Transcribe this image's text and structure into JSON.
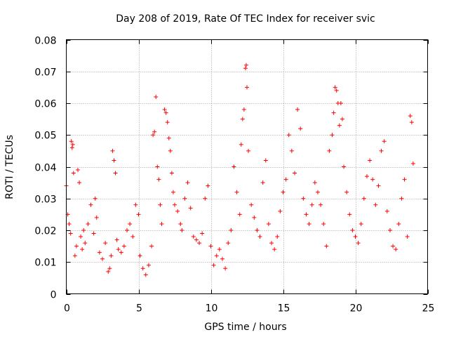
{
  "chart_data": {
    "type": "scatter",
    "title": "Day 208 of 2019, Rate Of TEC Index for receiver svic",
    "xlabel": "GPS time / hours",
    "ylabel": "ROTI / TECUs",
    "xlim": [
      0,
      25
    ],
    "ylim": [
      0,
      0.08
    ],
    "xticks": [
      0,
      5,
      10,
      15,
      20,
      25
    ],
    "xtick_labels": [
      "0",
      "5",
      "10",
      "15",
      "20",
      "25"
    ],
    "yticks": [
      0,
      0.01,
      0.02,
      0.03,
      0.04,
      0.05,
      0.06,
      0.07,
      0.08
    ],
    "ytick_labels": [
      "0",
      "0.01",
      "0.02",
      "0.03",
      "0.04",
      "0.05",
      "0.06",
      "0.07",
      "0.08"
    ],
    "grid": true,
    "marker": "plus",
    "series": [
      {
        "name": "ROTI",
        "color": "#ff0000",
        "points": [
          [
            0.0,
            0.034
          ],
          [
            0.1,
            0.025
          ],
          [
            0.2,
            0.022
          ],
          [
            0.3,
            0.019
          ],
          [
            0.35,
            0.048
          ],
          [
            0.4,
            0.046
          ],
          [
            0.45,
            0.047
          ],
          [
            0.5,
            0.038
          ],
          [
            0.6,
            0.012
          ],
          [
            0.7,
            0.015
          ],
          [
            0.8,
            0.039
          ],
          [
            0.9,
            0.035
          ],
          [
            1.0,
            0.018
          ],
          [
            1.1,
            0.014
          ],
          [
            1.2,
            0.02
          ],
          [
            1.3,
            0.016
          ],
          [
            1.5,
            0.022
          ],
          [
            1.7,
            0.028
          ],
          [
            1.9,
            0.019
          ],
          [
            2.0,
            0.03
          ],
          [
            2.1,
            0.024
          ],
          [
            2.3,
            0.013
          ],
          [
            2.5,
            0.011
          ],
          [
            2.7,
            0.016
          ],
          [
            2.9,
            0.007
          ],
          [
            3.0,
            0.008
          ],
          [
            3.1,
            0.012
          ],
          [
            3.2,
            0.045
          ],
          [
            3.3,
            0.042
          ],
          [
            3.4,
            0.038
          ],
          [
            3.5,
            0.017
          ],
          [
            3.6,
            0.014
          ],
          [
            3.8,
            0.013
          ],
          [
            4.0,
            0.015
          ],
          [
            4.2,
            0.02
          ],
          [
            4.4,
            0.022
          ],
          [
            4.6,
            0.018
          ],
          [
            4.8,
            0.028
          ],
          [
            5.0,
            0.025
          ],
          [
            5.1,
            0.012
          ],
          [
            5.3,
            0.008
          ],
          [
            5.5,
            0.006
          ],
          [
            5.7,
            0.009
          ],
          [
            5.9,
            0.015
          ],
          [
            6.0,
            0.05
          ],
          [
            6.1,
            0.051
          ],
          [
            6.2,
            0.062
          ],
          [
            6.3,
            0.04
          ],
          [
            6.4,
            0.036
          ],
          [
            6.5,
            0.028
          ],
          [
            6.6,
            0.022
          ],
          [
            6.8,
            0.058
          ],
          [
            6.9,
            0.057
          ],
          [
            7.0,
            0.054
          ],
          [
            7.1,
            0.049
          ],
          [
            7.2,
            0.045
          ],
          [
            7.3,
            0.038
          ],
          [
            7.4,
            0.032
          ],
          [
            7.5,
            0.028
          ],
          [
            7.7,
            0.026
          ],
          [
            7.9,
            0.022
          ],
          [
            8.0,
            0.02
          ],
          [
            8.2,
            0.03
          ],
          [
            8.4,
            0.035
          ],
          [
            8.6,
            0.027
          ],
          [
            8.8,
            0.018
          ],
          [
            9.0,
            0.017
          ],
          [
            9.2,
            0.016
          ],
          [
            9.4,
            0.019
          ],
          [
            9.6,
            0.03
          ],
          [
            9.8,
            0.034
          ],
          [
            10.0,
            0.015
          ],
          [
            10.2,
            0.009
          ],
          [
            10.4,
            0.012
          ],
          [
            10.6,
            0.014
          ],
          [
            10.8,
            0.011
          ],
          [
            11.0,
            0.008
          ],
          [
            11.2,
            0.016
          ],
          [
            11.4,
            0.02
          ],
          [
            11.6,
            0.04
          ],
          [
            11.8,
            0.032
          ],
          [
            12.0,
            0.025
          ],
          [
            12.1,
            0.047
          ],
          [
            12.2,
            0.055
          ],
          [
            12.3,
            0.058
          ],
          [
            12.4,
            0.071
          ],
          [
            12.45,
            0.072
          ],
          [
            12.5,
            0.065
          ],
          [
            12.6,
            0.045
          ],
          [
            12.8,
            0.028
          ],
          [
            13.0,
            0.024
          ],
          [
            13.2,
            0.02
          ],
          [
            13.4,
            0.018
          ],
          [
            13.6,
            0.035
          ],
          [
            13.8,
            0.042
          ],
          [
            14.0,
            0.022
          ],
          [
            14.2,
            0.016
          ],
          [
            14.4,
            0.014
          ],
          [
            14.6,
            0.018
          ],
          [
            14.8,
            0.026
          ],
          [
            15.0,
            0.032
          ],
          [
            15.2,
            0.036
          ],
          [
            15.4,
            0.05
          ],
          [
            15.6,
            0.045
          ],
          [
            15.8,
            0.038
          ],
          [
            16.0,
            0.058
          ],
          [
            16.2,
            0.052
          ],
          [
            16.4,
            0.03
          ],
          [
            16.6,
            0.025
          ],
          [
            16.8,
            0.022
          ],
          [
            17.0,
            0.028
          ],
          [
            17.2,
            0.035
          ],
          [
            17.4,
            0.032
          ],
          [
            17.6,
            0.028
          ],
          [
            17.8,
            0.022
          ],
          [
            18.0,
            0.015
          ],
          [
            18.2,
            0.045
          ],
          [
            18.4,
            0.05
          ],
          [
            18.5,
            0.057
          ],
          [
            18.6,
            0.065
          ],
          [
            18.7,
            0.064
          ],
          [
            18.8,
            0.06
          ],
          [
            18.9,
            0.053
          ],
          [
            19.0,
            0.06
          ],
          [
            19.1,
            0.055
          ],
          [
            19.2,
            0.04
          ],
          [
            19.4,
            0.032
          ],
          [
            19.6,
            0.025
          ],
          [
            19.8,
            0.02
          ],
          [
            20.0,
            0.018
          ],
          [
            20.2,
            0.016
          ],
          [
            20.4,
            0.022
          ],
          [
            20.6,
            0.03
          ],
          [
            20.8,
            0.037
          ],
          [
            21.0,
            0.042
          ],
          [
            21.2,
            0.036
          ],
          [
            21.4,
            0.028
          ],
          [
            21.6,
            0.034
          ],
          [
            21.8,
            0.045
          ],
          [
            22.0,
            0.048
          ],
          [
            22.2,
            0.026
          ],
          [
            22.4,
            0.02
          ],
          [
            22.6,
            0.015
          ],
          [
            22.8,
            0.014
          ],
          [
            23.0,
            0.022
          ],
          [
            23.2,
            0.03
          ],
          [
            23.4,
            0.036
          ],
          [
            23.6,
            0.018
          ],
          [
            23.8,
            0.056
          ],
          [
            23.9,
            0.054
          ],
          [
            24.0,
            0.041
          ]
        ]
      }
    ]
  }
}
